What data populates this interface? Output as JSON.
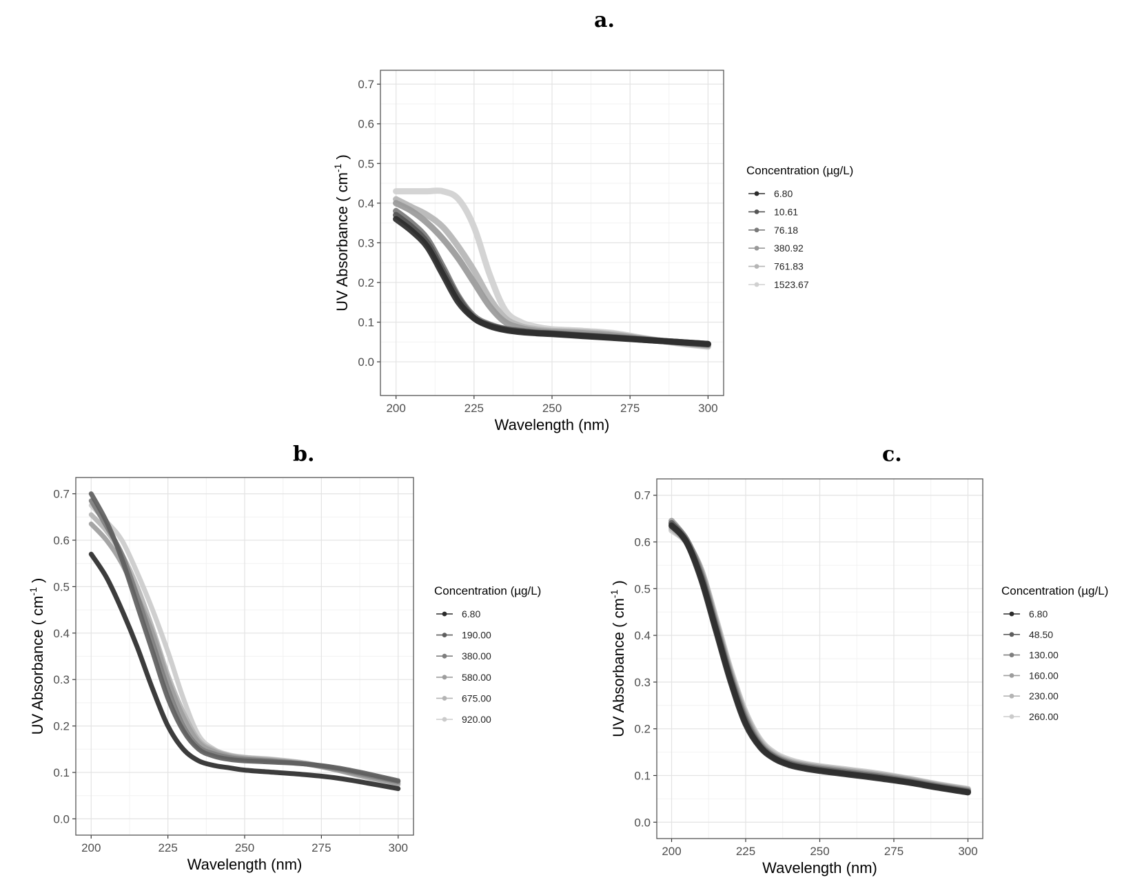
{
  "labels": {
    "a": "a.",
    "b": "b.",
    "c": "c."
  },
  "chart_data": [
    {
      "id": "a",
      "type": "line",
      "title": "a.",
      "xlabel": "Wavelength (nm)",
      "ylabel": "UV Absorbance ( cm^-1 )",
      "ylabel_main": "UV Absorbance ( cm",
      "ylabel_sup": "-1",
      "ylabel_end": " )",
      "xlim": [
        195,
        305
      ],
      "ylim": [
        -0.085,
        0.735
      ],
      "xticks": [
        200,
        225,
        250,
        275,
        300
      ],
      "yticks": [
        0.0,
        0.1,
        0.2,
        0.3,
        0.4,
        0.5,
        0.6,
        0.7
      ],
      "xtick_labels": [
        "200",
        "225",
        "250",
        "275",
        "300"
      ],
      "ytick_labels": [
        "0.0",
        "0.1",
        "0.2",
        "0.3",
        "0.4",
        "0.5",
        "0.6",
        "0.7"
      ],
      "grid": true,
      "legend_title": "Concentration (µg/L)",
      "legend_position": "right",
      "x": [
        200,
        205,
        210,
        215,
        220,
        225,
        230,
        235,
        240,
        245,
        250,
        260,
        270,
        280,
        290,
        300
      ],
      "series": [
        {
          "name": "6.80",
          "color": "#2b2b2b",
          "values": [
            0.36,
            0.33,
            0.29,
            0.22,
            0.15,
            0.11,
            0.09,
            0.08,
            0.075,
            0.072,
            0.07,
            0.065,
            0.06,
            0.055,
            0.05,
            0.045
          ]
        },
        {
          "name": "10.61",
          "color": "#555555",
          "values": [
            0.37,
            0.34,
            0.3,
            0.23,
            0.16,
            0.11,
            0.092,
            0.082,
            0.077,
            0.073,
            0.071,
            0.066,
            0.061,
            0.055,
            0.05,
            0.045
          ]
        },
        {
          "name": "76.18",
          "color": "#7a7a7a",
          "values": [
            0.38,
            0.35,
            0.31,
            0.24,
            0.165,
            0.115,
            0.094,
            0.083,
            0.078,
            0.074,
            0.072,
            0.067,
            0.062,
            0.056,
            0.05,
            0.044
          ]
        },
        {
          "name": "380.92",
          "color": "#999999",
          "values": [
            0.4,
            0.38,
            0.35,
            0.31,
            0.26,
            0.2,
            0.14,
            0.1,
            0.085,
            0.078,
            0.075,
            0.072,
            0.066,
            0.057,
            0.049,
            0.042
          ]
        },
        {
          "name": "761.83",
          "color": "#b5b5b5",
          "values": [
            0.41,
            0.39,
            0.37,
            0.34,
            0.29,
            0.23,
            0.16,
            0.11,
            0.09,
            0.082,
            0.078,
            0.075,
            0.069,
            0.058,
            0.048,
            0.04
          ]
        },
        {
          "name": "1523.67",
          "color": "#d0d0d0",
          "values": [
            0.43,
            0.43,
            0.43,
            0.43,
            0.41,
            0.34,
            0.22,
            0.13,
            0.1,
            0.088,
            0.082,
            0.078,
            0.072,
            0.059,
            0.047,
            0.038
          ]
        }
      ]
    },
    {
      "id": "b",
      "type": "line",
      "title": "b.",
      "xlabel": "Wavelength (nm)",
      "ylabel": "UV Absorbance ( cm^-1 )",
      "ylabel_main": "UV Absorbance ( cm",
      "ylabel_sup": "-1",
      "ylabel_end": " )",
      "xlim": [
        195,
        305
      ],
      "ylim": [
        -0.035,
        0.735
      ],
      "xticks": [
        200,
        225,
        250,
        275,
        300
      ],
      "yticks": [
        0.0,
        0.1,
        0.2,
        0.3,
        0.4,
        0.5,
        0.6,
        0.7
      ],
      "xtick_labels": [
        "200",
        "225",
        "250",
        "275",
        "300"
      ],
      "ytick_labels": [
        "0.0",
        "0.1",
        "0.2",
        "0.3",
        "0.4",
        "0.5",
        "0.6",
        "0.7"
      ],
      "grid": true,
      "legend_title": "Concentration (µg/L)",
      "legend_position": "right",
      "x": [
        200,
        205,
        210,
        215,
        220,
        225,
        230,
        235,
        240,
        245,
        250,
        260,
        270,
        280,
        290,
        300
      ],
      "series": [
        {
          "name": "6.80",
          "color": "#2b2b2b",
          "values": [
            0.57,
            0.52,
            0.45,
            0.37,
            0.28,
            0.2,
            0.15,
            0.125,
            0.115,
            0.11,
            0.105,
            0.1,
            0.095,
            0.088,
            0.077,
            0.065
          ]
        },
        {
          "name": "190.00",
          "color": "#5e5e5e",
          "values": [
            0.7,
            0.64,
            0.56,
            0.46,
            0.36,
            0.26,
            0.19,
            0.15,
            0.135,
            0.128,
            0.125,
            0.122,
            0.118,
            0.11,
            0.097,
            0.082
          ]
        },
        {
          "name": "380.00",
          "color": "#7e7e7e",
          "values": [
            0.685,
            0.63,
            0.57,
            0.48,
            0.38,
            0.28,
            0.2,
            0.155,
            0.14,
            0.132,
            0.128,
            0.124,
            0.118,
            0.108,
            0.094,
            0.08
          ]
        },
        {
          "name": "580.00",
          "color": "#9d9d9d",
          "values": [
            0.635,
            0.6,
            0.55,
            0.48,
            0.4,
            0.3,
            0.22,
            0.165,
            0.145,
            0.135,
            0.13,
            0.125,
            0.118,
            0.105,
            0.09,
            0.076
          ]
        },
        {
          "name": "675.00",
          "color": "#b4b4b4",
          "values": [
            0.655,
            0.62,
            0.57,
            0.5,
            0.41,
            0.31,
            0.23,
            0.17,
            0.148,
            0.137,
            0.132,
            0.127,
            0.12,
            0.106,
            0.09,
            0.075
          ]
        },
        {
          "name": "920.00",
          "color": "#cbcbcb",
          "values": [
            0.675,
            0.64,
            0.6,
            0.53,
            0.45,
            0.36,
            0.26,
            0.18,
            0.15,
            0.138,
            0.133,
            0.128,
            0.12,
            0.105,
            0.088,
            0.073
          ]
        }
      ]
    },
    {
      "id": "c",
      "type": "line",
      "title": "c.",
      "xlabel": "Wavelength (nm)",
      "ylabel": "UV Absorbance ( cm^-1 )",
      "ylabel_main": "UV Absorbance ( cm",
      "ylabel_sup": "-1",
      "ylabel_end": " )",
      "xlim": [
        195,
        305
      ],
      "ylim": [
        -0.035,
        0.735
      ],
      "xticks": [
        200,
        225,
        250,
        275,
        300
      ],
      "yticks": [
        0.0,
        0.1,
        0.2,
        0.3,
        0.4,
        0.5,
        0.6,
        0.7
      ],
      "xtick_labels": [
        "200",
        "225",
        "250",
        "275",
        "300"
      ],
      "ytick_labels": [
        "0.0",
        "0.1",
        "0.2",
        "0.3",
        "0.4",
        "0.5",
        "0.6",
        "0.7"
      ],
      "grid": true,
      "legend_title": "Concentration (µg/L)",
      "legend_position": "right",
      "x": [
        200,
        205,
        210,
        215,
        220,
        225,
        230,
        235,
        240,
        245,
        250,
        260,
        270,
        280,
        290,
        300
      ],
      "series": [
        {
          "name": "6.80",
          "color": "#2b2b2b",
          "values": [
            0.635,
            0.6,
            0.52,
            0.41,
            0.3,
            0.21,
            0.16,
            0.135,
            0.122,
            0.115,
            0.11,
            0.102,
            0.094,
            0.085,
            0.074,
            0.064
          ]
        },
        {
          "name": "48.50",
          "color": "#5e5e5e",
          "values": [
            0.64,
            0.6,
            0.525,
            0.415,
            0.305,
            0.215,
            0.162,
            0.137,
            0.124,
            0.117,
            0.112,
            0.104,
            0.096,
            0.086,
            0.075,
            0.065
          ]
        },
        {
          "name": "130.00",
          "color": "#7e7e7e",
          "values": [
            0.64,
            0.605,
            0.53,
            0.42,
            0.31,
            0.22,
            0.165,
            0.139,
            0.126,
            0.119,
            0.114,
            0.106,
            0.098,
            0.088,
            0.077,
            0.067
          ]
        },
        {
          "name": "160.00",
          "color": "#9d9d9d",
          "values": [
            0.645,
            0.605,
            0.535,
            0.425,
            0.315,
            0.225,
            0.168,
            0.141,
            0.128,
            0.121,
            0.116,
            0.108,
            0.1,
            0.09,
            0.078,
            0.068
          ]
        },
        {
          "name": "230.00",
          "color": "#b4b4b4",
          "values": [
            0.63,
            0.6,
            0.54,
            0.43,
            0.32,
            0.23,
            0.172,
            0.144,
            0.13,
            0.123,
            0.118,
            0.11,
            0.102,
            0.092,
            0.08,
            0.07
          ]
        },
        {
          "name": "260.00",
          "color": "#cbcbcb",
          "values": [
            0.625,
            0.6,
            0.54,
            0.435,
            0.325,
            0.235,
            0.176,
            0.147,
            0.133,
            0.125,
            0.12,
            0.112,
            0.104,
            0.093,
            0.081,
            0.071
          ]
        }
      ]
    }
  ]
}
